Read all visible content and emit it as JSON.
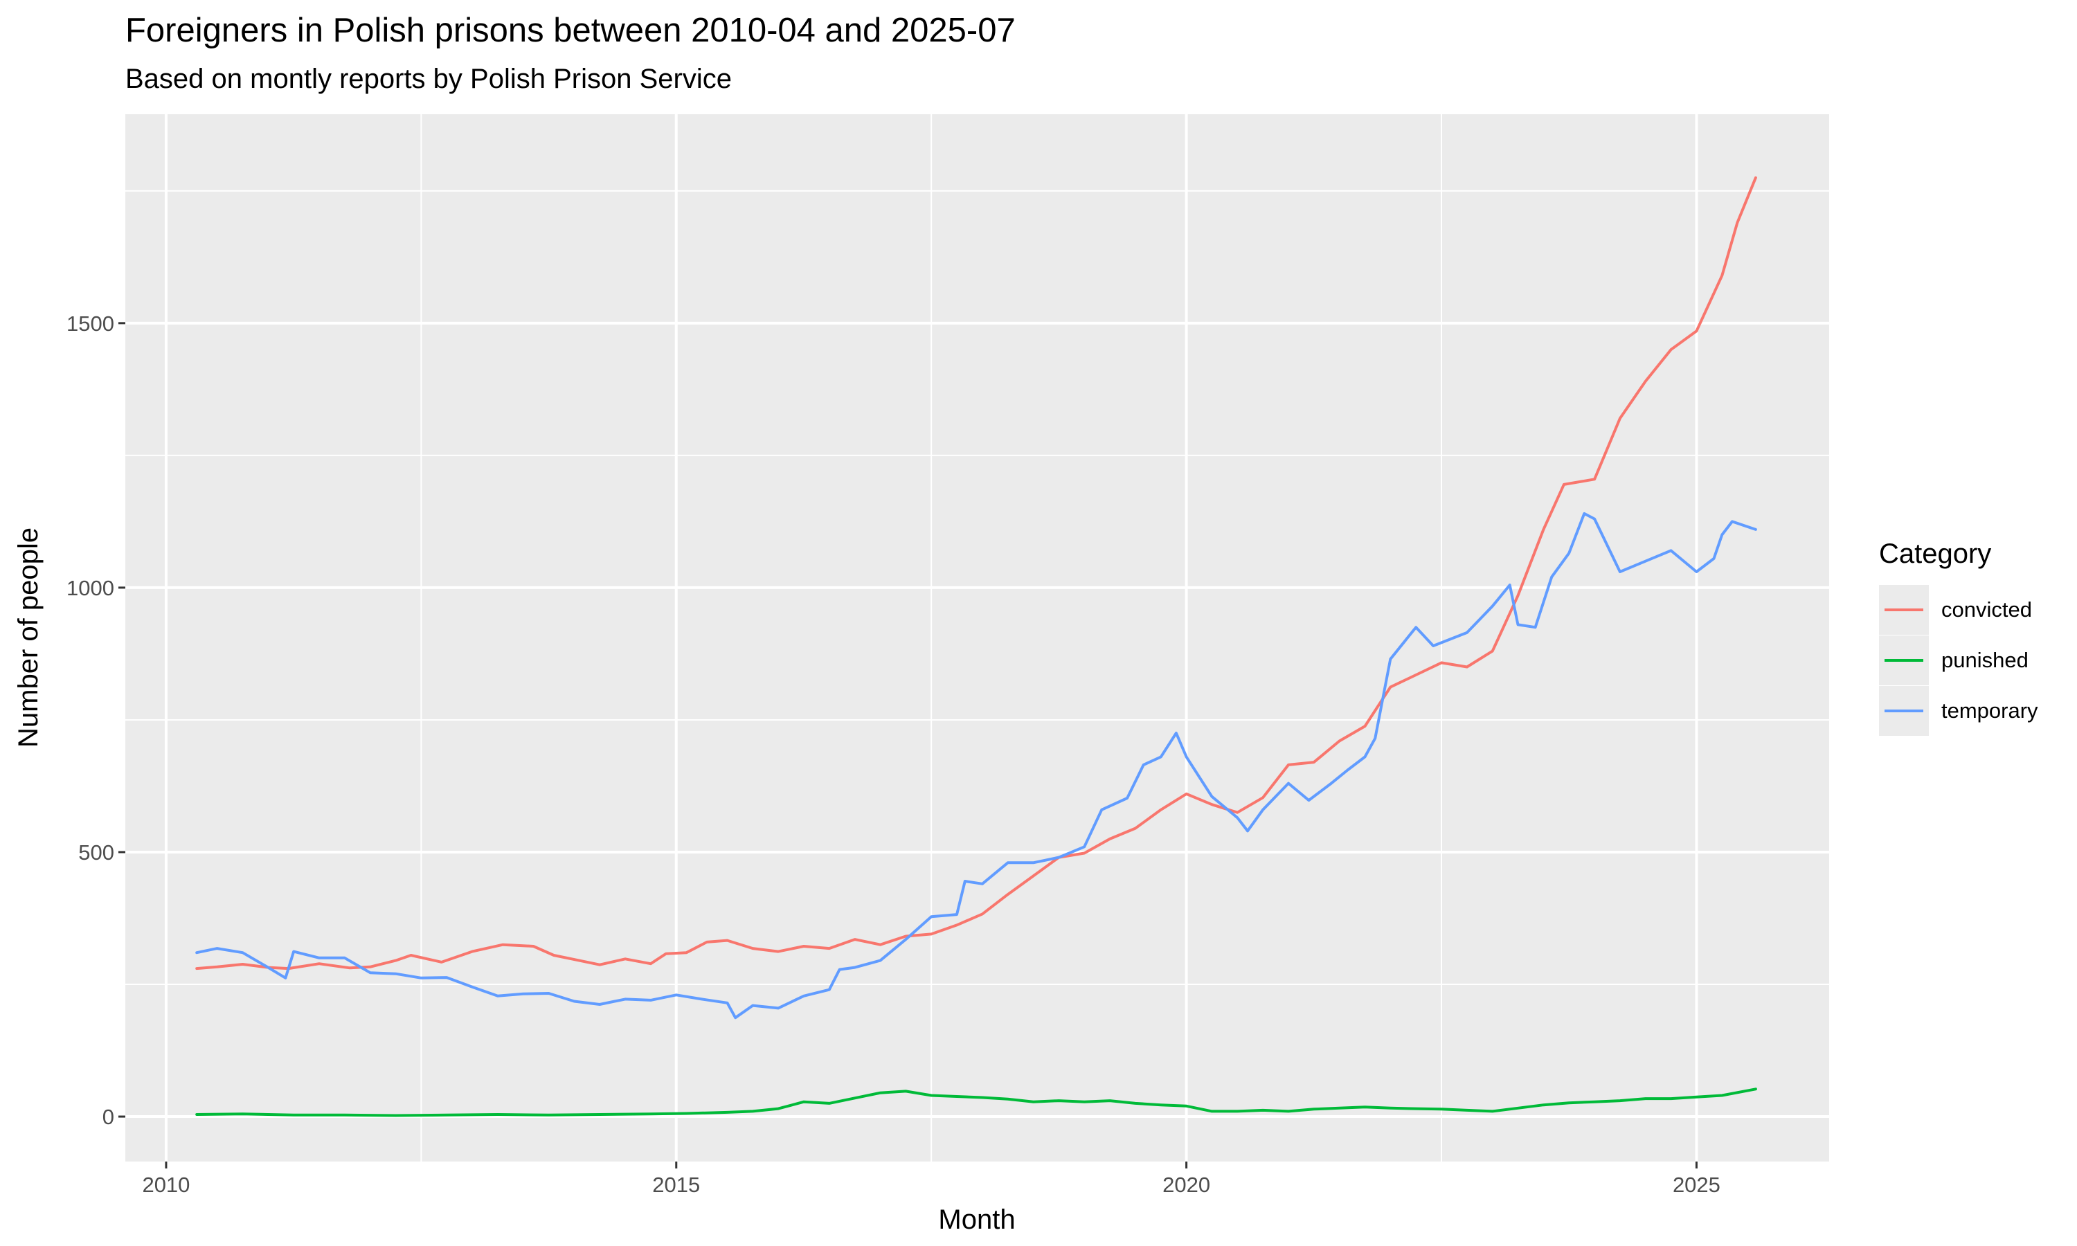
{
  "header": {
    "title": "Foreigners in Polish prisons between 2010-04 and 2025-07",
    "subtitle": "Based on montly reports by Polish Prison Service"
  },
  "legend": {
    "title": "Category",
    "items": [
      {
        "label": "convicted",
        "color": "#F8766D"
      },
      {
        "label": "punished",
        "color": "#00BA38"
      },
      {
        "label": "temporary",
        "color": "#619CFF"
      }
    ]
  },
  "chart_data": {
    "type": "line",
    "title": "Foreigners in Polish prisons between 2010-04 and 2025-07",
    "subtitle": "Based on montly reports by Polish Prison Service",
    "xlabel": "Month",
    "ylabel": "Number of people",
    "x_axis": "time (monthly, 2010-04 to 2025-07)",
    "xlim": [
      2009.6,
      2026.3
    ],
    "ylim": [
      -85,
      1895
    ],
    "x_ticks": [
      2010,
      2015,
      2020,
      2025
    ],
    "y_ticks": [
      0,
      500,
      1000,
      1500
    ],
    "x_tick_labels": [
      "2010",
      "2015",
      "2020",
      "2025"
    ],
    "y_tick_labels": [
      "0",
      "500",
      "1000",
      "1500"
    ],
    "grid": true,
    "background": "#EBEBEB",
    "legend_position": "right",
    "series": [
      {
        "name": "convicted",
        "color": "#F8766D",
        "points": [
          [
            2010.3,
            280
          ],
          [
            2010.5,
            283
          ],
          [
            2010.75,
            288
          ],
          [
            2011.0,
            282
          ],
          [
            2011.2,
            280
          ],
          [
            2011.5,
            289
          ],
          [
            2011.8,
            281
          ],
          [
            2012.0,
            283
          ],
          [
            2012.25,
            295
          ],
          [
            2012.4,
            305
          ],
          [
            2012.7,
            292
          ],
          [
            2013.0,
            312
          ],
          [
            2013.3,
            325
          ],
          [
            2013.6,
            322
          ],
          [
            2013.8,
            305
          ],
          [
            2014.0,
            297
          ],
          [
            2014.25,
            287
          ],
          [
            2014.5,
            298
          ],
          [
            2014.75,
            289
          ],
          [
            2014.9,
            308
          ],
          [
            2015.1,
            310
          ],
          [
            2015.3,
            330
          ],
          [
            2015.5,
            333
          ],
          [
            2015.75,
            318
          ],
          [
            2016.0,
            312
          ],
          [
            2016.25,
            322
          ],
          [
            2016.5,
            318
          ],
          [
            2016.75,
            335
          ],
          [
            2017.0,
            325
          ],
          [
            2017.25,
            341
          ],
          [
            2017.5,
            345
          ],
          [
            2017.75,
            362
          ],
          [
            2018.0,
            383
          ],
          [
            2018.25,
            420
          ],
          [
            2018.5,
            455
          ],
          [
            2018.75,
            490
          ],
          [
            2019.0,
            498
          ],
          [
            2019.25,
            525
          ],
          [
            2019.5,
            545
          ],
          [
            2019.75,
            580
          ],
          [
            2020.0,
            610
          ],
          [
            2020.25,
            590
          ],
          [
            2020.5,
            575
          ],
          [
            2020.75,
            603
          ],
          [
            2021.0,
            665
          ],
          [
            2021.25,
            670
          ],
          [
            2021.5,
            710
          ],
          [
            2021.75,
            738
          ],
          [
            2022.0,
            812
          ],
          [
            2022.25,
            835
          ],
          [
            2022.5,
            858
          ],
          [
            2022.75,
            850
          ],
          [
            2023.0,
            880
          ],
          [
            2023.25,
            985
          ],
          [
            2023.5,
            1110
          ],
          [
            2023.7,
            1195
          ],
          [
            2024.0,
            1205
          ],
          [
            2024.25,
            1320
          ],
          [
            2024.5,
            1390
          ],
          [
            2024.75,
            1450
          ],
          [
            2025.0,
            1485
          ],
          [
            2025.25,
            1590
          ],
          [
            2025.4,
            1690
          ],
          [
            2025.58,
            1775
          ]
        ]
      },
      {
        "name": "punished",
        "color": "#00BA38",
        "points": [
          [
            2010.3,
            4
          ],
          [
            2010.75,
            5
          ],
          [
            2011.25,
            3
          ],
          [
            2011.75,
            3
          ],
          [
            2012.25,
            2
          ],
          [
            2012.75,
            3
          ],
          [
            2013.25,
            4
          ],
          [
            2013.75,
            3
          ],
          [
            2014.25,
            4
          ],
          [
            2014.75,
            5
          ],
          [
            2015.1,
            6
          ],
          [
            2015.5,
            8
          ],
          [
            2015.75,
            10
          ],
          [
            2016.0,
            15
          ],
          [
            2016.25,
            28
          ],
          [
            2016.5,
            25
          ],
          [
            2016.75,
            35
          ],
          [
            2017.0,
            45
          ],
          [
            2017.25,
            48
          ],
          [
            2017.5,
            40
          ],
          [
            2017.75,
            38
          ],
          [
            2018.0,
            36
          ],
          [
            2018.25,
            33
          ],
          [
            2018.5,
            28
          ],
          [
            2018.75,
            30
          ],
          [
            2019.0,
            28
          ],
          [
            2019.25,
            30
          ],
          [
            2019.5,
            25
          ],
          [
            2019.75,
            22
          ],
          [
            2020.0,
            20
          ],
          [
            2020.25,
            10
          ],
          [
            2020.5,
            10
          ],
          [
            2020.75,
            12
          ],
          [
            2021.0,
            10
          ],
          [
            2021.25,
            14
          ],
          [
            2021.5,
            16
          ],
          [
            2021.75,
            18
          ],
          [
            2022.0,
            16
          ],
          [
            2022.25,
            15
          ],
          [
            2022.5,
            14
          ],
          [
            2022.75,
            12
          ],
          [
            2023.0,
            10
          ],
          [
            2023.25,
            16
          ],
          [
            2023.5,
            22
          ],
          [
            2023.75,
            26
          ],
          [
            2024.0,
            28
          ],
          [
            2024.25,
            30
          ],
          [
            2024.5,
            34
          ],
          [
            2024.75,
            34
          ],
          [
            2025.0,
            37
          ],
          [
            2025.25,
            40
          ],
          [
            2025.58,
            52
          ]
        ]
      },
      {
        "name": "temporary",
        "color": "#619CFF",
        "points": [
          [
            2010.3,
            310
          ],
          [
            2010.5,
            318
          ],
          [
            2010.75,
            310
          ],
          [
            2011.0,
            282
          ],
          [
            2011.17,
            262
          ],
          [
            2011.25,
            312
          ],
          [
            2011.5,
            300
          ],
          [
            2011.75,
            300
          ],
          [
            2012.0,
            272
          ],
          [
            2012.25,
            270
          ],
          [
            2012.5,
            262
          ],
          [
            2012.75,
            263
          ],
          [
            2013.0,
            245
          ],
          [
            2013.25,
            228
          ],
          [
            2013.5,
            232
          ],
          [
            2013.75,
            233
          ],
          [
            2014.0,
            218
          ],
          [
            2014.25,
            212
          ],
          [
            2014.5,
            222
          ],
          [
            2014.75,
            220
          ],
          [
            2015.0,
            230
          ],
          [
            2015.25,
            222
          ],
          [
            2015.5,
            215
          ],
          [
            2015.58,
            187
          ],
          [
            2015.75,
            210
          ],
          [
            2016.0,
            205
          ],
          [
            2016.25,
            228
          ],
          [
            2016.5,
            240
          ],
          [
            2016.6,
            278
          ],
          [
            2016.75,
            282
          ],
          [
            2017.0,
            295
          ],
          [
            2017.25,
            335
          ],
          [
            2017.5,
            378
          ],
          [
            2017.75,
            382
          ],
          [
            2017.83,
            445
          ],
          [
            2018.0,
            440
          ],
          [
            2018.25,
            480
          ],
          [
            2018.5,
            480
          ],
          [
            2018.75,
            490
          ],
          [
            2019.0,
            510
          ],
          [
            2019.17,
            580
          ],
          [
            2019.42,
            602
          ],
          [
            2019.58,
            665
          ],
          [
            2019.75,
            680
          ],
          [
            2019.9,
            725
          ],
          [
            2020.0,
            680
          ],
          [
            2020.25,
            605
          ],
          [
            2020.5,
            565
          ],
          [
            2020.6,
            540
          ],
          [
            2020.75,
            580
          ],
          [
            2021.0,
            630
          ],
          [
            2021.2,
            598
          ],
          [
            2021.42,
            630
          ],
          [
            2021.58,
            655
          ],
          [
            2021.75,
            680
          ],
          [
            2021.85,
            715
          ],
          [
            2022.0,
            865
          ],
          [
            2022.25,
            925
          ],
          [
            2022.42,
            890
          ],
          [
            2022.75,
            915
          ],
          [
            2023.0,
            965
          ],
          [
            2023.17,
            1005
          ],
          [
            2023.25,
            930
          ],
          [
            2023.42,
            925
          ],
          [
            2023.58,
            1020
          ],
          [
            2023.75,
            1065
          ],
          [
            2023.9,
            1140
          ],
          [
            2024.0,
            1130
          ],
          [
            2024.25,
            1030
          ],
          [
            2024.5,
            1050
          ],
          [
            2024.75,
            1070
          ],
          [
            2025.0,
            1030
          ],
          [
            2025.17,
            1055
          ],
          [
            2025.25,
            1100
          ],
          [
            2025.35,
            1125
          ],
          [
            2025.58,
            1110
          ]
        ]
      }
    ]
  }
}
